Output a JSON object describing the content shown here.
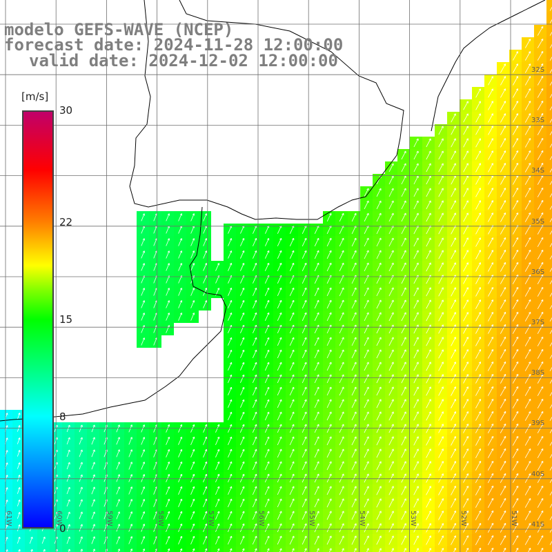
{
  "title": {
    "line1": "modelo GEFS-WAVE (NCEP)",
    "line2": "forecast date: 2024-11-28 12:00:00",
    "line3": "valid date: 2024-12-02 12:00:00"
  },
  "colorbar": {
    "unit": "[m/s]",
    "min": 0,
    "max": 30,
    "ticks": [
      {
        "label": "30",
        "value": 30
      },
      {
        "label": "22",
        "value": 22
      },
      {
        "label": "15",
        "value": 15
      },
      {
        "label": "8",
        "value": 8
      },
      {
        "label": "0",
        "value": 0
      }
    ],
    "colors": [
      "#0000ff",
      "#0080ff",
      "#00ffff",
      "#00ff80",
      "#00ff00",
      "#80ff00",
      "#ffff00",
      "#ff8000",
      "#ff0000",
      "#c0006a"
    ]
  },
  "map": {
    "lat_labels": [
      "32S",
      "33S",
      "34S",
      "35S",
      "36S",
      "37S",
      "38S",
      "39S",
      "40S",
      "41S"
    ],
    "lon_labels": [
      "61W",
      "60W",
      "59W",
      "58W",
      "57W",
      "56W",
      "55W",
      "54W",
      "53W",
      "52W",
      "51W"
    ],
    "land_color": "#ffffff",
    "coast_color": "#000000",
    "grid_color": "#6e6e6e",
    "arrow_color": "#ffffff"
  }
}
